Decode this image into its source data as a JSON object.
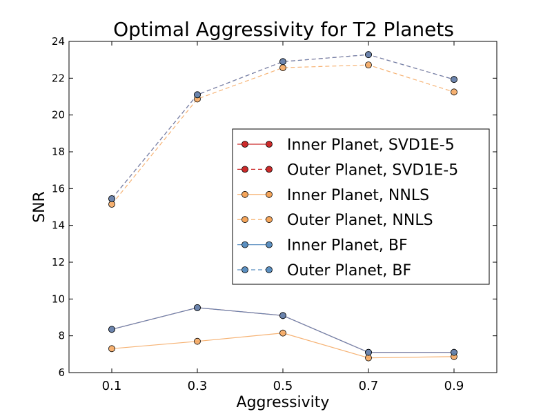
{
  "chart_data": {
    "type": "line",
    "title": "Optimal Aggressivity for T2 Planets",
    "xlabel": "Aggressivity",
    "ylabel": "SNR",
    "x": [
      0.1,
      0.3,
      0.5,
      0.7,
      0.9
    ],
    "x_tick_labels": [
      "0.1",
      "0.3",
      "0.5",
      "0.7",
      "0.9"
    ],
    "xlim": [
      0.0,
      1.0
    ],
    "ylim": [
      6,
      24
    ],
    "y_ticks": [
      6,
      8,
      10,
      12,
      14,
      16,
      18,
      20,
      22,
      24
    ],
    "y_tick_labels": [
      "6",
      "8",
      "10",
      "12",
      "14",
      "16",
      "18",
      "20",
      "22",
      "24"
    ],
    "legend_position": "center-right",
    "series": [
      {
        "name": "Inner Planet, SVD1E-5",
        "values": [
          8.35,
          9.53,
          9.1,
          7.1,
          7.1
        ],
        "color": "#cc2a2a",
        "linestyle": "solid"
      },
      {
        "name": "Outer Planet, SVD1E-5",
        "values": [
          15.45,
          21.1,
          22.9,
          23.28,
          21.93
        ],
        "color": "#cc2a2a",
        "linestyle": "dashed"
      },
      {
        "name": "Inner Planet, NNLS",
        "values": [
          7.3,
          7.7,
          8.15,
          6.8,
          6.87
        ],
        "color": "#f5a55a",
        "linestyle": "solid"
      },
      {
        "name": "Outer Planet, NNLS",
        "values": [
          15.15,
          20.87,
          22.57,
          22.72,
          21.25
        ],
        "color": "#f5a55a",
        "linestyle": "dashed"
      },
      {
        "name": "Inner Planet, BF",
        "values": [
          8.35,
          9.53,
          9.1,
          7.1,
          7.1
        ],
        "color": "#5b8fc0",
        "linestyle": "solid"
      },
      {
        "name": "Outer Planet, BF",
        "values": [
          15.45,
          21.1,
          22.9,
          23.28,
          21.93
        ],
        "color": "#5b8fc0",
        "linestyle": "dashed"
      }
    ]
  }
}
